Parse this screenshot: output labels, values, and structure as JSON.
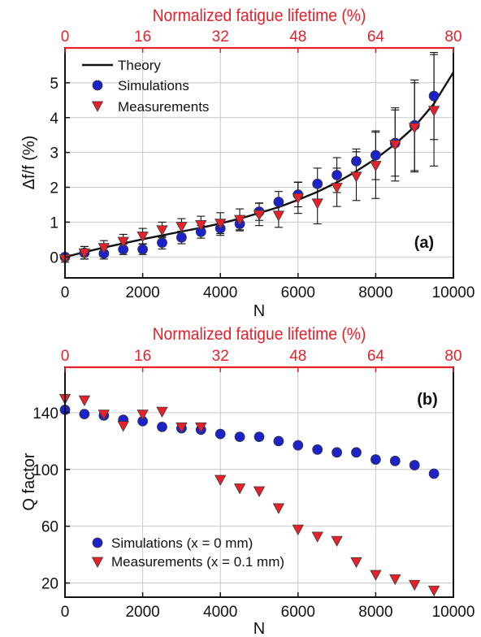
{
  "colors": {
    "top_axis": "#e8202a",
    "frame": "#111111",
    "grid": "#c8c8c8",
    "sim_fill": "#1c22c8",
    "meas_fill": "#e8202a",
    "marker_edge": "#3a3a3a"
  },
  "chart_data": [
    {
      "id": "a",
      "type": "scatter",
      "panel_label": "(a)",
      "xlabel": "N",
      "ylabel": "Δf/f (%)",
      "top_xlabel": "Normalized fatigue lifetime (%)",
      "top_xticks": [
        "0",
        "16",
        "32",
        "48",
        "64",
        "80"
      ],
      "xlim": [
        0,
        10000
      ],
      "ylim": [
        -0.6,
        6.0
      ],
      "xticks": [
        0,
        2000,
        4000,
        6000,
        8000,
        10000
      ],
      "yticks": [
        0,
        1,
        2,
        3,
        4,
        5
      ],
      "grid": true,
      "legend_position": "top-left",
      "theory": {
        "name": "Theory",
        "x": [
          0,
          500,
          1000,
          1500,
          2000,
          2500,
          3000,
          3500,
          4000,
          4500,
          5000,
          5500,
          6000,
          6500,
          7000,
          7500,
          8000,
          8500,
          9000,
          9500,
          10000
        ],
        "y": [
          0.0,
          0.14,
          0.27,
          0.39,
          0.51,
          0.62,
          0.73,
          0.84,
          0.96,
          1.1,
          1.26,
          1.43,
          1.64,
          1.87,
          2.14,
          2.46,
          2.82,
          3.24,
          3.74,
          4.4,
          5.3
        ]
      },
      "series": [
        {
          "name": "Simulations",
          "marker": "circle",
          "x": [
            0,
            500,
            1000,
            1500,
            2000,
            2500,
            3000,
            3500,
            4000,
            4500,
            5000,
            5500,
            6000,
            6500,
            7000,
            7500,
            8000,
            8500,
            9000,
            9500
          ],
          "y": [
            0.0,
            0.12,
            0.1,
            0.22,
            0.22,
            0.41,
            0.56,
            0.72,
            0.82,
            0.95,
            1.3,
            1.58,
            1.79,
            2.1,
            2.35,
            2.75,
            2.92,
            3.27,
            3.78,
            4.62
          ],
          "err": [
            0.05,
            0.18,
            0.16,
            0.15,
            0.15,
            0.18,
            0.18,
            0.18,
            0.2,
            0.2,
            0.25,
            0.3,
            0.35,
            0.45,
            0.5,
            0.35,
            0.7,
            0.95,
            1.3,
            1.25
          ]
        },
        {
          "name": "Measurements",
          "marker": "triangle-down",
          "x": [
            0,
            500,
            1000,
            1500,
            2000,
            2500,
            3000,
            3500,
            4000,
            4500,
            5000,
            5500,
            6000,
            6500,
            7000,
            7500,
            8000,
            8500,
            9000,
            9500
          ],
          "y": [
            -0.05,
            0.12,
            0.27,
            0.45,
            0.6,
            0.78,
            0.88,
            0.93,
            0.97,
            1.08,
            1.22,
            1.2,
            1.7,
            1.55,
            2.0,
            2.32,
            2.63,
            3.23,
            3.72,
            4.21
          ],
          "err": [
            0.1,
            0.18,
            0.2,
            0.2,
            0.22,
            0.22,
            0.22,
            0.24,
            0.3,
            0.3,
            0.32,
            0.35,
            0.45,
            0.6,
            0.55,
            0.7,
            0.95,
            1.05,
            1.28,
            1.6
          ]
        }
      ]
    },
    {
      "id": "b",
      "type": "scatter",
      "panel_label": "(b)",
      "xlabel": "N",
      "ylabel": "Q factor",
      "top_xlabel": "Normalized fatigue lifetime (%)",
      "top_xticks": [
        "0",
        "16",
        "32",
        "48",
        "64",
        "80"
      ],
      "xlim": [
        0,
        10000
      ],
      "ylim": [
        10,
        172
      ],
      "xticks": [
        0,
        2000,
        4000,
        6000,
        8000,
        10000
      ],
      "yticks": [
        20,
        60,
        100,
        140
      ],
      "grid": true,
      "legend_position": "bottom-left",
      "series": [
        {
          "name": "Simulations (x = 0 mm)",
          "marker": "circle",
          "x": [
            0,
            500,
            1000,
            1500,
            2000,
            2500,
            3000,
            3500,
            4000,
            4500,
            5000,
            5500,
            6000,
            6500,
            7000,
            7500,
            8000,
            8500,
            9000,
            9500
          ],
          "y": [
            142,
            139,
            138,
            135,
            134,
            130,
            129,
            128,
            125,
            123,
            123,
            120,
            117,
            114,
            112,
            112,
            107,
            106,
            103,
            97
          ]
        },
        {
          "name": "Measurements (x = 0.1 mm)",
          "marker": "triangle-down",
          "x": [
            0,
            500,
            1000,
            1500,
            2000,
            2500,
            3000,
            3500,
            4000,
            4500,
            5000,
            5500,
            6000,
            6500,
            7000,
            7500,
            8000,
            8500,
            9000,
            9500
          ],
          "y": [
            150,
            149,
            139,
            131,
            139,
            141,
            130,
            130,
            93,
            87,
            85,
            73,
            58,
            53,
            50,
            35,
            26,
            23,
            19,
            15
          ]
        }
      ]
    }
  ]
}
